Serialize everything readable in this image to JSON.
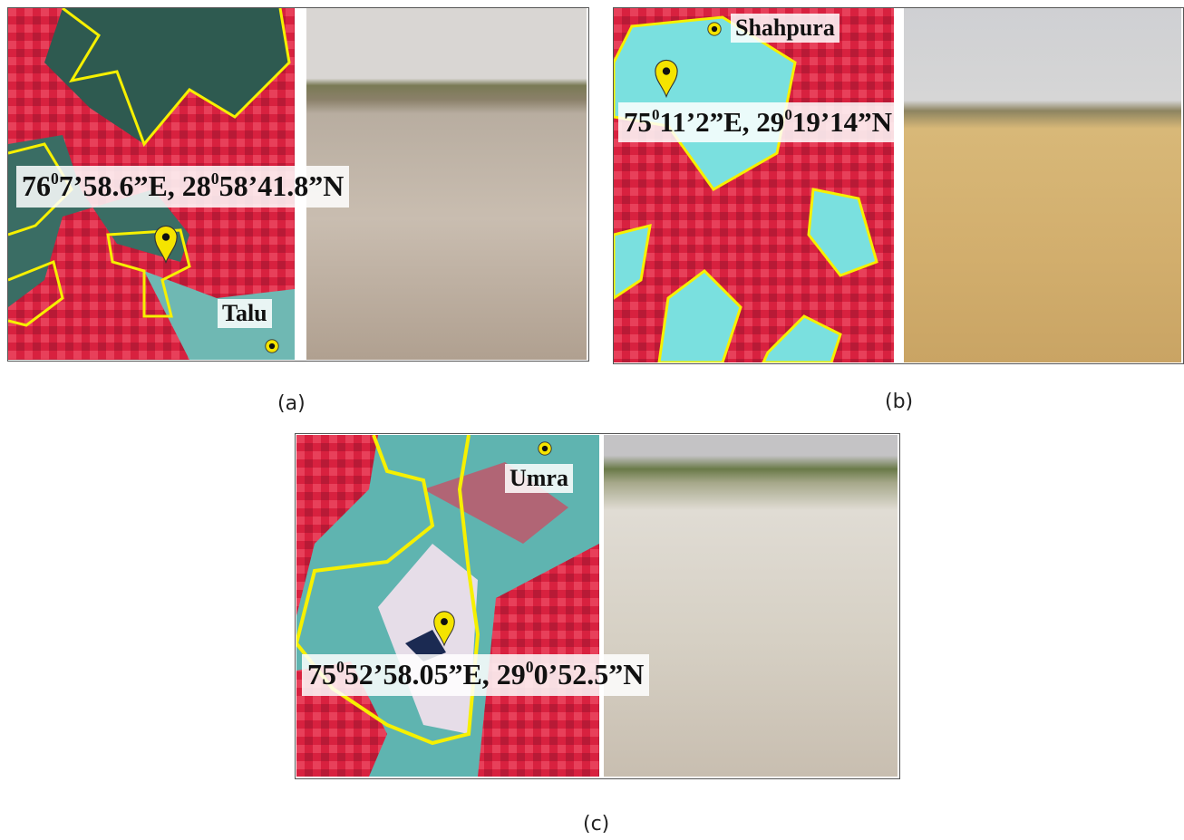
{
  "panels": [
    {
      "label": "(a)",
      "coordinate": [
        "76",
        "0",
        "7’58.6”E, 28",
        "0",
        "58’41.8”N"
      ],
      "place": "Talu"
    },
    {
      "label": "(b)",
      "coordinate": [
        "75",
        "0",
        "11’2”E, 29",
        "0",
        "19’14”N"
      ],
      "place": "Shahpura"
    },
    {
      "label": "(c)",
      "coordinate": [
        "75",
        "0",
        "52’58.05”E, 29",
        "0",
        "0’52.5”N"
      ],
      "place": "Umra"
    }
  ]
}
